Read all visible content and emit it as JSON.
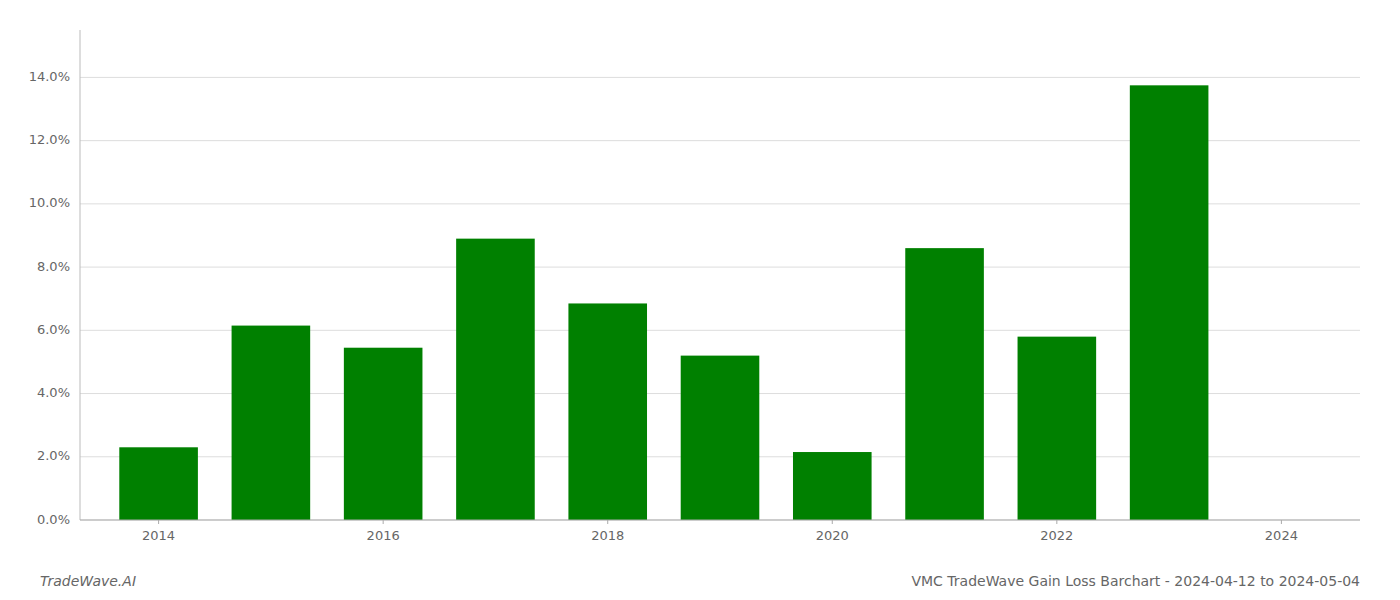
{
  "chart_data": {
    "type": "bar",
    "title": "VMC TradeWave Gain Loss Barchart - 2024-04-12 to 2024-05-04",
    "annotations": [
      "TradeWave.AI"
    ],
    "x": [
      2014,
      2015,
      2016,
      2017,
      2018,
      2019,
      2020,
      2021,
      2022,
      2023
    ],
    "values": [
      0.023,
      0.0615,
      0.0545,
      0.089,
      0.0685,
      0.052,
      0.0215,
      0.086,
      0.058,
      0.1375
    ],
    "color": "#008000",
    "xlim": [
      2013.3,
      2024.7
    ],
    "xticks": [
      2014,
      2016,
      2018,
      2020,
      2022,
      2024
    ],
    "ylim": [
      0,
      0.155
    ],
    "yticks": [
      {
        "value": 0.0,
        "label": "0.0%"
      },
      {
        "value": 0.02,
        "label": "2.0%"
      },
      {
        "value": 0.04,
        "label": "4.0%"
      },
      {
        "value": 0.06,
        "label": "6.0%"
      },
      {
        "value": 0.08,
        "label": "8.0%"
      },
      {
        "value": 0.1,
        "label": "10.0%"
      },
      {
        "value": 0.12,
        "label": "12.0%"
      },
      {
        "value": 0.14,
        "label": "14.0%"
      }
    ],
    "grid": true
  }
}
